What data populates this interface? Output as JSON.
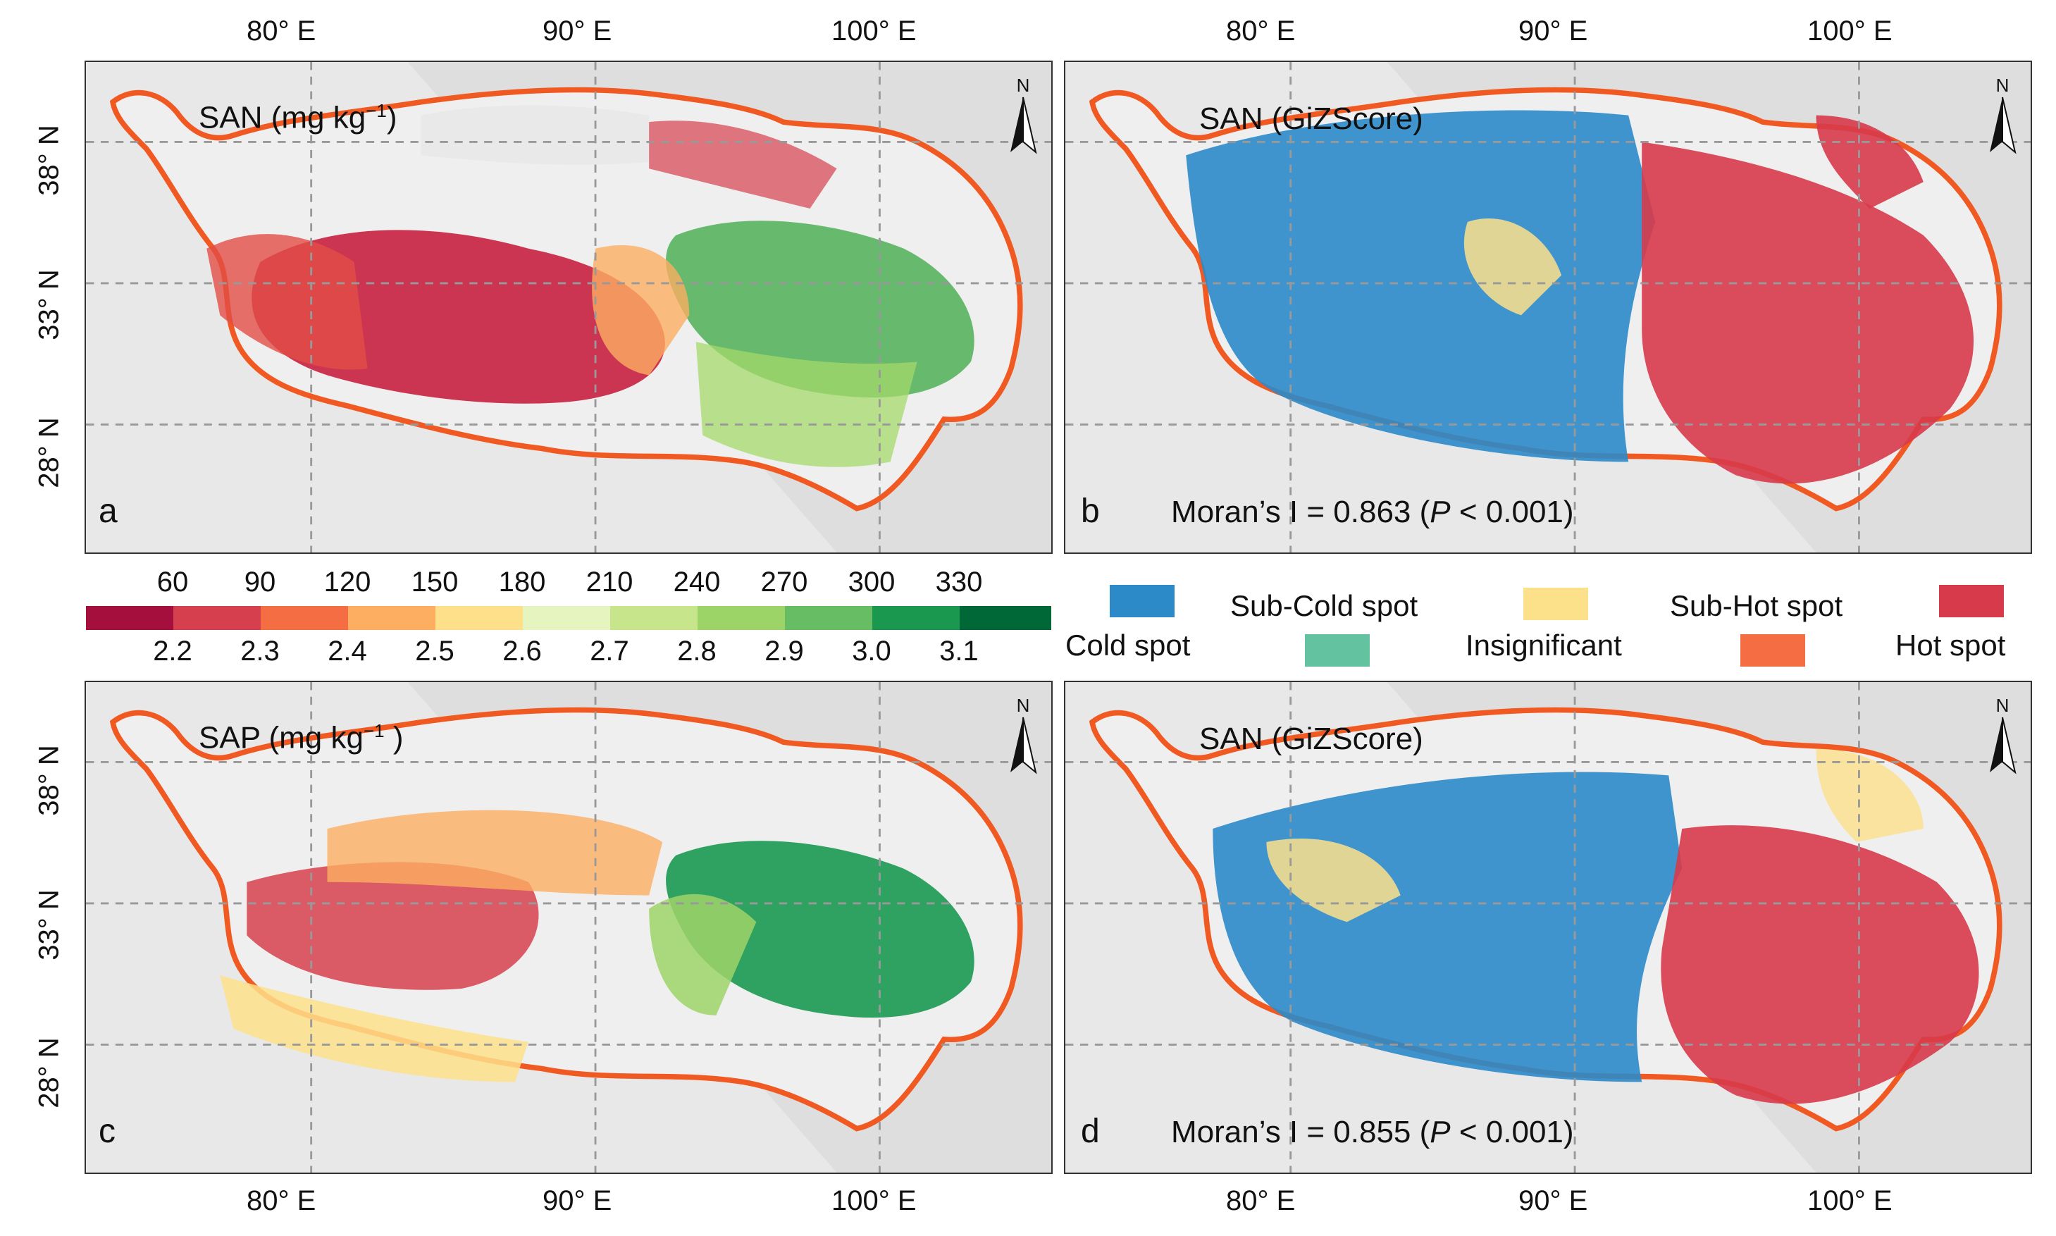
{
  "panels": {
    "a": {
      "title": "SAN  (mg kg",
      "title_sup": "−1",
      "title_end": ")",
      "letter": "a"
    },
    "b": {
      "title": "SAN (GiZScore)",
      "letter": "b",
      "moran_prefix": "Moran’s I = 0.863 (",
      "moran_p": "P",
      "moran_suffix": " < 0.001)"
    },
    "c": {
      "title": "SAP  (mg kg",
      "title_sup": "−1",
      "title_end": " )",
      "letter": "c"
    },
    "d": {
      "title": "SAN (GiZScore)",
      "letter": "d",
      "moran_prefix": "Moran’s I = 0.855 (",
      "moran_p": "P",
      "moran_suffix": " < 0.001)"
    }
  },
  "north_label": "N",
  "axes": {
    "lon_ticks": [
      "80° E",
      "90° E",
      "100° E"
    ],
    "lat_ticks": [
      "38° N",
      "33° N",
      "28° N"
    ]
  },
  "colorbar": {
    "top_labels": [
      "60",
      "90",
      "120",
      "150",
      "180",
      "210",
      "240",
      "270",
      "300",
      "330"
    ],
    "bottom_labels": [
      "2.2",
      "2.3",
      "2.4",
      "2.5",
      "2.6",
      "2.7",
      "2.8",
      "2.9",
      "3.0",
      "3.1"
    ],
    "colors": [
      "#a50f3d",
      "#d6404e",
      "#f46d43",
      "#fdae61",
      "#fee08b",
      "#e6f5c0",
      "#c7e58a",
      "#9dd468",
      "#66bd63",
      "#1a9850",
      "#006837"
    ]
  },
  "hotspot_legend": {
    "items": [
      {
        "label": "Cold spot",
        "color": "#2c8ac9"
      },
      {
        "label": "Sub-Cold spot",
        "color": "#63c3a0"
      },
      {
        "label": "Insignificant",
        "color": "#fde08a"
      },
      {
        "label": "Sub-Hot spot",
        "color": "#f46d43"
      },
      {
        "label": "Hot spot",
        "color": "#d73a4a"
      }
    ]
  },
  "colors": {
    "land": "#dcdcdc",
    "boundary": "#f05a22",
    "background": "#f4f4f4"
  }
}
